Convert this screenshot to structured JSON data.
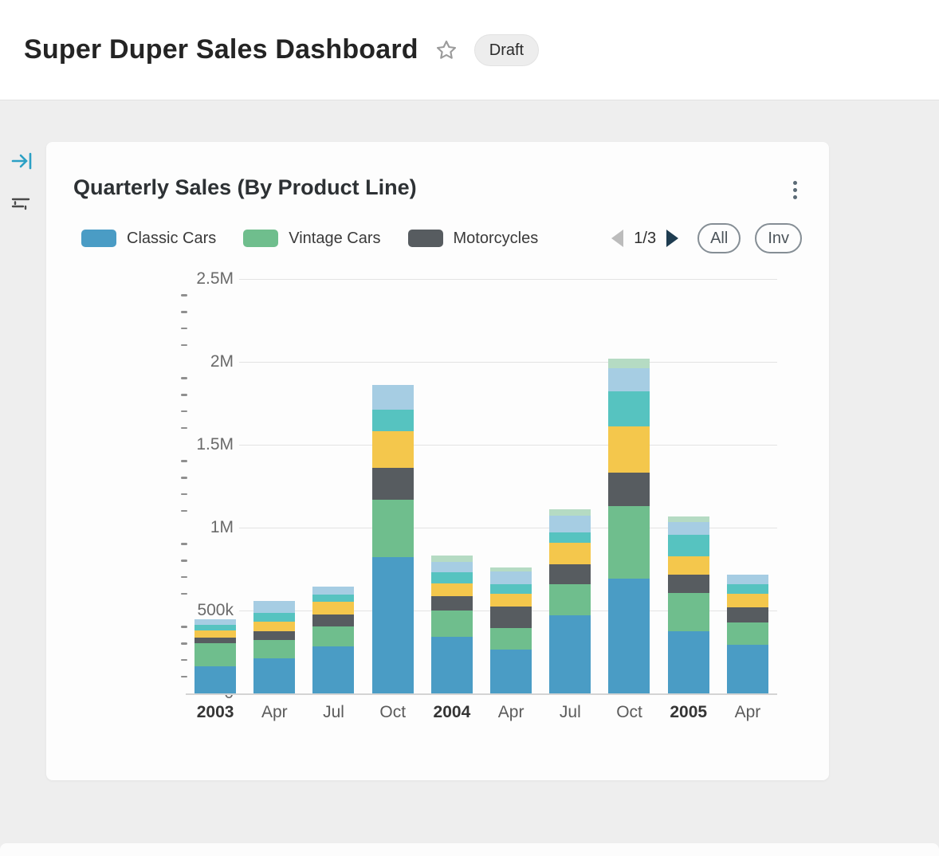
{
  "header": {
    "title": "Super Duper Sales Dashboard",
    "badge": "Draft"
  },
  "side_toolbar": {
    "collapse_icon": "arrow-to-bar-right",
    "filter_icon": "filter-lines",
    "accent_color": "#2ba0c4",
    "icon_color": "#4a4a4a"
  },
  "widget": {
    "title": "Quarterly Sales (By Product Line)",
    "menu_icon": "kebab-vertical",
    "legend": [
      {
        "label": "Classic Cars",
        "color": "#4a9cc5"
      },
      {
        "label": "Vintage Cars",
        "color": "#6fbe8d"
      },
      {
        "label": "Motorcycles",
        "color": "#575c60"
      }
    ],
    "pagination": {
      "current": "1/3",
      "prev_icon": "triangle-left",
      "next_icon": "triangle-right",
      "prev_color": "#bcbcbc",
      "next_color": "#1e3c50"
    },
    "buttons": [
      {
        "label": "All"
      },
      {
        "label": "Inv"
      }
    ]
  },
  "chart_data": {
    "type": "bar",
    "stacked": true,
    "title": "Quarterly Sales (By Product Line)",
    "legend_position": "top",
    "grid": true,
    "ylim": [
      0,
      2500000
    ],
    "minor_tick_step": 100000,
    "yticks": [
      {
        "label": "0",
        "value": 0
      },
      {
        "label": "500k",
        "value": 500000
      },
      {
        "label": "1M",
        "value": 1000000
      },
      {
        "label": "1.5M",
        "value": 1500000
      },
      {
        "label": "2M",
        "value": 2000000
      },
      {
        "label": "2.5M",
        "value": 2500000
      }
    ],
    "categories": [
      {
        "label": "2003",
        "bold": true
      },
      {
        "label": "Apr",
        "bold": false
      },
      {
        "label": "Jul",
        "bold": false
      },
      {
        "label": "Oct",
        "bold": false
      },
      {
        "label": "2004",
        "bold": true
      },
      {
        "label": "Apr",
        "bold": false
      },
      {
        "label": "Jul",
        "bold": false
      },
      {
        "label": "Oct",
        "bold": false
      },
      {
        "label": "2005",
        "bold": true
      },
      {
        "label": "Apr",
        "bold": false
      }
    ],
    "series": [
      {
        "name": "Classic Cars",
        "color": "#4a9cc5",
        "values": [
          165000,
          210000,
          285000,
          820000,
          340000,
          265000,
          470000,
          690000,
          375000,
          295000
        ]
      },
      {
        "name": "Vintage Cars",
        "color": "#6fbe8d",
        "values": [
          140000,
          110000,
          120000,
          350000,
          160000,
          130000,
          190000,
          440000,
          230000,
          135000
        ]
      },
      {
        "name": "Motorcycles",
        "color": "#575c60",
        "values": [
          30000,
          55000,
          70000,
          190000,
          85000,
          130000,
          120000,
          200000,
          110000,
          90000
        ]
      },
      {
        "name": "unlabeled (yellow)",
        "color": "#f4c74c",
        "values": [
          45000,
          60000,
          80000,
          220000,
          80000,
          75000,
          130000,
          280000,
          110000,
          80000
        ]
      },
      {
        "name": "unlabeled (teal)",
        "color": "#56c3c0",
        "values": [
          35000,
          50000,
          40000,
          130000,
          65000,
          60000,
          60000,
          210000,
          130000,
          60000
        ]
      },
      {
        "name": "unlabeled (light blue)",
        "color": "#a6cde3",
        "values": [
          30000,
          75000,
          50000,
          150000,
          65000,
          75000,
          100000,
          140000,
          80000,
          55000
        ]
      },
      {
        "name": "unlabeled (light green)",
        "color": "#b5dbc3",
        "values": [
          0,
          0,
          0,
          0,
          35000,
          25000,
          40000,
          60000,
          35000,
          0
        ]
      }
    ]
  }
}
